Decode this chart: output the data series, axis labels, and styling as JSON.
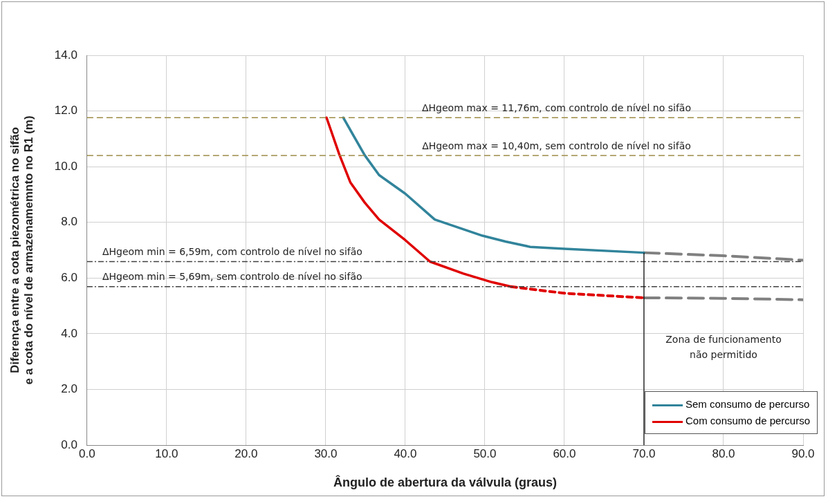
{
  "chart_data": {
    "type": "line",
    "xlabel": "Ângulo de abertura da válvula (graus)",
    "ylabel": "Diferença entre a cota piezométrica no sifão e a cota do nível de armazenamemnto no R1 (m)",
    "xlim": [
      0,
      90
    ],
    "ylim": [
      0,
      14
    ],
    "xticks": [
      {
        "value": 0,
        "label": "0.0"
      },
      {
        "value": 10,
        "label": "10.0"
      },
      {
        "value": 20,
        "label": "20.0"
      },
      {
        "value": 30,
        "label": "30.0"
      },
      {
        "value": 40,
        "label": "40.0"
      },
      {
        "value": 50,
        "label": "50.0"
      },
      {
        "value": 60,
        "label": "60.0"
      },
      {
        "value": 70,
        "label": "70.0"
      },
      {
        "value": 80,
        "label": "80.0"
      },
      {
        "value": 90,
        "label": "90.0"
      }
    ],
    "yticks": [
      {
        "value": 0,
        "label": "0.0"
      },
      {
        "value": 2,
        "label": "2.0"
      },
      {
        "value": 4,
        "label": "4.0"
      },
      {
        "value": 6,
        "label": "6.0"
      },
      {
        "value": 8,
        "label": "8.0"
      },
      {
        "value": 10,
        "label": "10.0"
      },
      {
        "value": 12,
        "label": "12.0"
      },
      {
        "value": 14,
        "label": "14.0"
      }
    ],
    "grid": true,
    "legend": "bottom right",
    "marker": "none",
    "series": [
      {
        "name": "Sem consumo de percurso",
        "color": "#31849b",
        "line_style": "solid",
        "x": [
          32.2,
          34.9,
          36.7,
          40.0,
          43.7,
          49.7,
          52.6,
          55.7,
          60.0,
          70.0
        ],
        "values": [
          11.76,
          10.41,
          9.7,
          9.03,
          8.1,
          7.52,
          7.31,
          7.12,
          7.05,
          6.91
        ]
      },
      {
        "name": "Com consumo de percurso",
        "color": "#e00000",
        "line_style": "solid",
        "x": [
          30.1,
          31.7,
          33.1,
          34.9,
          36.7,
          40.0,
          43.1,
          47.3,
          50.9,
          53.3
        ],
        "values": [
          11.76,
          10.44,
          9.43,
          8.71,
          8.1,
          7.36,
          6.59,
          6.16,
          5.85,
          5.69
        ]
      },
      {
        "color": "#e00000",
        "line_style": "dashed",
        "x": [
          53.3,
          60.1,
          70.0
        ],
        "values": [
          5.69,
          5.45,
          5.29
        ]
      },
      {
        "color": "#808080",
        "line_style": "dashed",
        "x": [
          70.0,
          80.0,
          90.0
        ],
        "values": [
          6.91,
          6.8,
          6.64
        ]
      },
      {
        "color": "#808080",
        "line_style": "dashed",
        "x": [
          70.0,
          80.0,
          90.0
        ],
        "values": [
          5.29,
          5.27,
          5.22
        ]
      }
    ],
    "ref_lines": [
      {
        "axis": "y",
        "value": 11.76,
        "label": "ΔHgeom max = 11,76m, com controlo de nível no sifão",
        "color": "#9c8b45",
        "line_style": "dashed"
      },
      {
        "axis": "y",
        "value": 10.4,
        "label": "ΔHgeom max = 10,40m, sem controlo de nível no sifão",
        "color": "#9c8b45",
        "line_style": "dashed"
      },
      {
        "axis": "y",
        "value": 6.59,
        "label": "ΔHgeom min = 6,59m, com controlo de nível no sifão",
        "color": "#404040",
        "line_style": "dotted"
      },
      {
        "axis": "y",
        "value": 5.69,
        "label": "ΔHgeom min = 5,69m, sem controlo de nível no sifão",
        "color": "#404040",
        "line_style": "dotted"
      },
      {
        "axis": "x",
        "value": 70,
        "color": "#000000",
        "line_style": "solid"
      }
    ],
    "annotations": [
      "Zona de funcionamento não permitido"
    ]
  }
}
